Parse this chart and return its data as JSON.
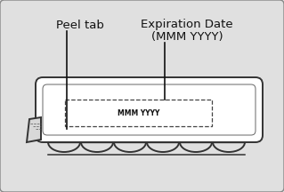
{
  "bg_color": "#e0e0e0",
  "border_color": "#888888",
  "tray_fill": "#ffffff",
  "tray_edge": "#333333",
  "label_text1": "Peel tab",
  "label_text2": "Expiration Date",
  "label_text3": "(MMM YYYY)",
  "stamp_text": "MMM YYYY",
  "text_color": "#111111",
  "title_fontsize": 9.5,
  "stamp_fontsize": 5.5,
  "fig_width": 3.19,
  "fig_height": 2.16,
  "dpi": 100
}
